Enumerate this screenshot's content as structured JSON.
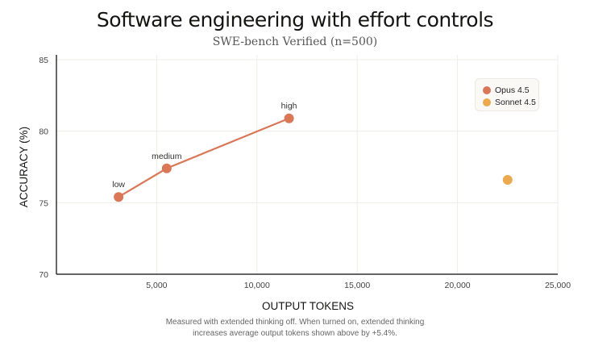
{
  "chart_data": {
    "type": "scatter",
    "title": "Software engineering with effort controls",
    "subtitle": "SWE-bench Verified (n=500)",
    "xlabel": "OUTPUT TOKENS",
    "ylabel": "ACCURACY (%)",
    "xlim": [
      0,
      25000
    ],
    "ylim": [
      70,
      85
    ],
    "x_ticks": [
      5000,
      10000,
      15000,
      20000,
      25000
    ],
    "x_tick_labels": [
      "5,000",
      "10,000",
      "15,000",
      "20,000",
      "25,000"
    ],
    "y_ticks": [
      70,
      75,
      80,
      85
    ],
    "y_tick_labels": [
      "70",
      "75",
      "80",
      "85"
    ],
    "grid": true,
    "legend_position": "top-right",
    "series": [
      {
        "name": "Opus 4.5",
        "color": "#D97757",
        "connected": true,
        "points": [
          {
            "x": 3100,
            "y": 75.4,
            "label": "low"
          },
          {
            "x": 5500,
            "y": 77.4,
            "label": "medium"
          },
          {
            "x": 11600,
            "y": 80.9,
            "label": "high"
          }
        ]
      },
      {
        "name": "Sonnet 4.5",
        "color": "#EBAA4F",
        "connected": false,
        "points": [
          {
            "x": 22500,
            "y": 76.6,
            "label": ""
          }
        ]
      }
    ],
    "footnote": [
      "Measured with extended thinking off. When turned on, extended thinking",
      "increases average output tokens shown above by +5.4%."
    ]
  }
}
